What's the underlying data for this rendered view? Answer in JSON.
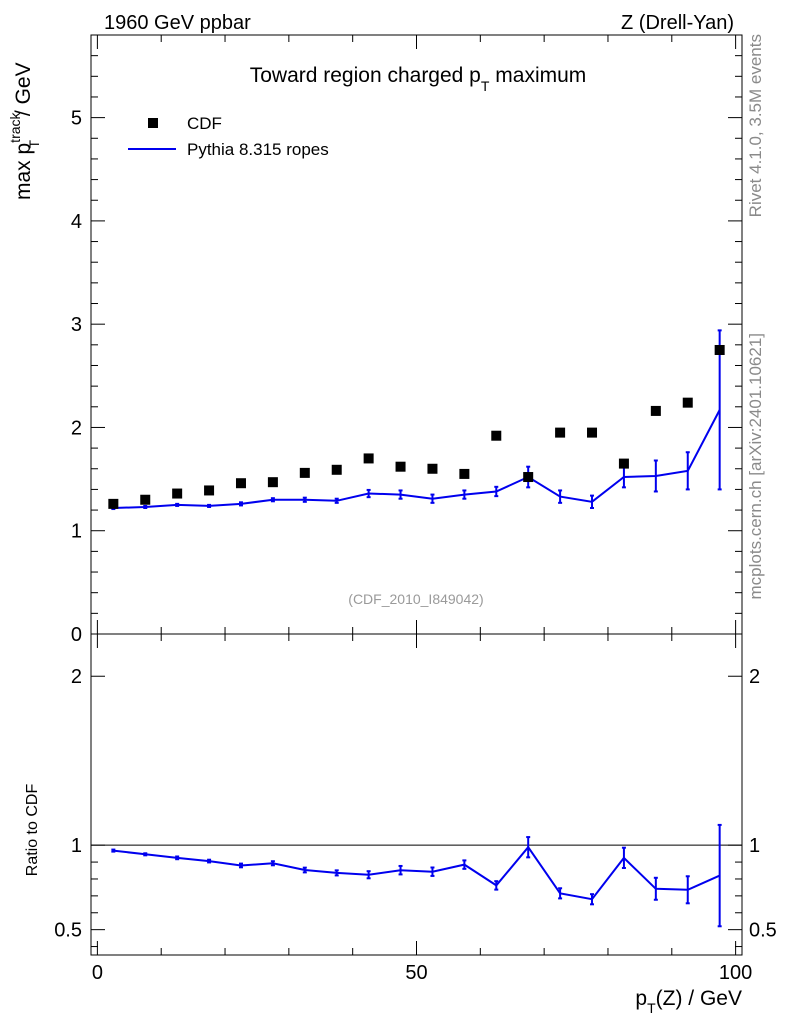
{
  "header": {
    "left": "1960 GeV ppbar",
    "right": "Z (Drell-Yan)"
  },
  "side": {
    "rivet": "Rivet 4.1.0,  3.5M events",
    "mcplots": "mcplots.cern.ch [arXiv:2401.10621]"
  },
  "main_panel": {
    "title_prefix": "Toward region charged p",
    "title_sub": "T",
    "title_suffix": " maximum",
    "ylabel_prefix": "max p",
    "ylabel_sup": "track",
    "ylabel_sub": "T",
    "ylabel_suffix": " / GeV",
    "reference": "(CDF_2010_I849042)",
    "legend": {
      "data": "CDF",
      "mc": "Pythia 8.315 ropes"
    }
  },
  "ratio_panel": {
    "ylabel": "Ratio to CDF"
  },
  "xaxis": {
    "label_prefix": "p",
    "label_sub": "T",
    "label_suffix": "(Z) / GeV"
  },
  "colors": {
    "mc": "#0000ee",
    "data": "#000000"
  },
  "chart_data": [
    {
      "type": "scatter",
      "title": "Toward region charged pT maximum",
      "xlabel": "pT(Z) / GeV",
      "ylabel": "max pT track / GeV",
      "xlim": [
        -1,
        101
      ],
      "ylim": [
        0,
        5.8
      ],
      "yticks": [
        0,
        1,
        2,
        3,
        4,
        5
      ],
      "yticklabels": [
        "0",
        "1",
        "2",
        "3",
        "4",
        "5"
      ],
      "x": [
        2.5,
        7.5,
        12.5,
        17.5,
        22.5,
        27.5,
        32.5,
        37.5,
        42.5,
        47.5,
        52.5,
        57.5,
        62.5,
        67.5,
        72.5,
        77.5,
        82.5,
        87.5,
        92.5,
        97.5
      ],
      "series": [
        {
          "name": "CDF",
          "style": "markers",
          "values": [
            1.26,
            1.3,
            1.36,
            1.39,
            1.46,
            1.47,
            1.56,
            1.59,
            1.7,
            1.62,
            1.6,
            1.55,
            1.92,
            1.52,
            1.95,
            1.95,
            1.65,
            2.16,
            2.24,
            2.75
          ]
        },
        {
          "name": "Pythia 8.315 ropes",
          "style": "line",
          "values": [
            1.22,
            1.23,
            1.25,
            1.24,
            1.26,
            1.3,
            1.3,
            1.29,
            1.36,
            1.35,
            1.31,
            1.35,
            1.38,
            1.52,
            1.33,
            1.28,
            1.52,
            1.53,
            1.58,
            2.17
          ],
          "errors": [
            0.01,
            0.01,
            0.01,
            0.01,
            0.015,
            0.015,
            0.02,
            0.02,
            0.035,
            0.04,
            0.04,
            0.04,
            0.045,
            0.1,
            0.06,
            0.06,
            0.1,
            0.15,
            0.18,
            0.77
          ]
        }
      ]
    },
    {
      "type": "line",
      "ylabel": "Ratio to CDF",
      "xlim": [
        -1,
        101
      ],
      "ylim": [
        0.35,
        2.25
      ],
      "yticks": [
        0.5,
        1,
        2
      ],
      "yticklabels": [
        "0.5",
        "1",
        "2"
      ],
      "xticks": [
        0,
        50,
        100
      ],
      "xticklabels": [
        "0",
        "50",
        "100"
      ],
      "reference_line": 1,
      "x": [
        2.5,
        7.5,
        12.5,
        17.5,
        22.5,
        27.5,
        32.5,
        37.5,
        42.5,
        47.5,
        52.5,
        57.5,
        62.5,
        67.5,
        72.5,
        77.5,
        82.5,
        87.5,
        92.5,
        97.5
      ],
      "series": [
        {
          "name": "Pythia 8.315 ropes / CDF",
          "values": [
            0.968,
            0.946,
            0.925,
            0.906,
            0.88,
            0.893,
            0.853,
            0.836,
            0.825,
            0.852,
            0.843,
            0.885,
            0.762,
            0.988,
            0.715,
            0.68,
            0.925,
            0.742,
            0.736,
            0.82
          ],
          "errors": [
            0.006,
            0.006,
            0.008,
            0.008,
            0.011,
            0.012,
            0.014,
            0.015,
            0.021,
            0.025,
            0.025,
            0.025,
            0.025,
            0.06,
            0.03,
            0.03,
            0.06,
            0.065,
            0.08,
            0.3
          ]
        }
      ]
    }
  ]
}
